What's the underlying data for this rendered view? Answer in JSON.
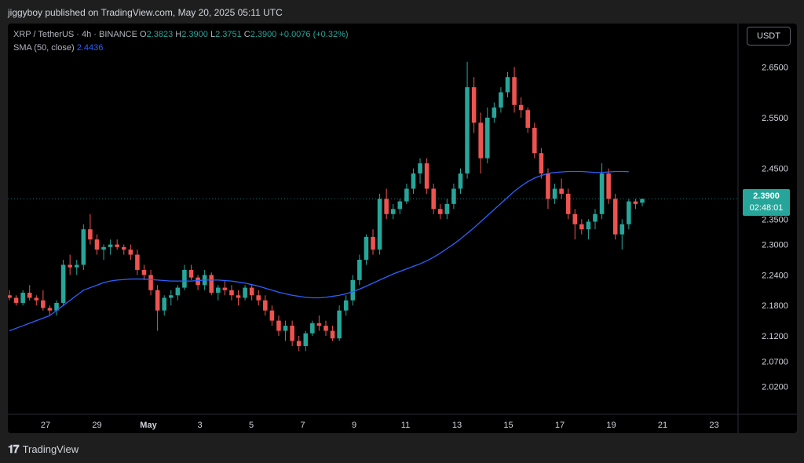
{
  "header": {
    "publisher_text": "jiggyboy published on TradingView.com, May 20, 2025 05:11 UTC"
  },
  "legend": {
    "symbol": "XRP / TetherUS · 4h · BINANCE",
    "o_label": "O",
    "o_value": "2.3823",
    "h_label": "H",
    "h_value": "2.3900",
    "l_label": "L",
    "l_value": "2.3751",
    "c_label": "C",
    "c_value": "2.3900",
    "change": "+0.0076 (+0.32%)",
    "sma_label": "SMA (50, close)",
    "sma_value": "2.4436"
  },
  "toolbar": {
    "currency_button": "USDT"
  },
  "last_price": {
    "price": "2.3900",
    "countdown": "02:48:01"
  },
  "footer": {
    "logo_mark": "𝟏𝟕",
    "brand": "TradingView"
  },
  "colors": {
    "up": "#26a69a",
    "down": "#ef5350",
    "sma": "#2962ff",
    "background": "#000000"
  },
  "chart_data": {
    "type": "candlestick",
    "symbol": "XRP / TetherUS",
    "interval": "4h",
    "yticks": [
      "2.6500",
      "2.5500",
      "2.4500",
      "2.3500",
      "2.3000",
      "2.2400",
      "2.1800",
      "2.1200",
      "2.0700",
      "2.0200"
    ],
    "ytick_values": [
      2.65,
      2.55,
      2.45,
      2.35,
      2.3,
      2.24,
      2.18,
      2.12,
      2.07,
      2.02
    ],
    "xticks": [
      "27",
      "29",
      "May",
      "3",
      "5",
      "7",
      "9",
      "11",
      "13",
      "15",
      "17",
      "19",
      "21",
      "23"
    ],
    "ylim": [
      1.97,
      2.72
    ],
    "candles": [
      [
        2.2,
        2.21,
        2.19,
        2.195
      ],
      [
        2.195,
        2.2,
        2.18,
        2.185
      ],
      [
        2.185,
        2.21,
        2.18,
        2.205
      ],
      [
        2.205,
        2.22,
        2.19,
        2.195
      ],
      [
        2.195,
        2.2,
        2.18,
        2.19
      ],
      [
        2.19,
        2.21,
        2.17,
        2.175
      ],
      [
        2.175,
        2.18,
        2.16,
        2.17
      ],
      [
        2.17,
        2.19,
        2.16,
        2.185
      ],
      [
        2.185,
        2.27,
        2.18,
        2.26
      ],
      [
        2.26,
        2.28,
        2.24,
        2.255
      ],
      [
        2.255,
        2.27,
        2.24,
        2.26
      ],
      [
        2.26,
        2.34,
        2.25,
        2.33
      ],
      [
        2.33,
        2.36,
        2.3,
        2.31
      ],
      [
        2.31,
        2.32,
        2.28,
        2.29
      ],
      [
        2.29,
        2.3,
        2.27,
        2.295
      ],
      [
        2.295,
        2.31,
        2.28,
        2.3
      ],
      [
        2.3,
        2.31,
        2.29,
        2.295
      ],
      [
        2.295,
        2.3,
        2.28,
        2.29
      ],
      [
        2.29,
        2.3,
        2.27,
        2.28
      ],
      [
        2.28,
        2.29,
        2.24,
        2.25
      ],
      [
        2.25,
        2.26,
        2.23,
        2.24
      ],
      [
        2.24,
        2.25,
        2.2,
        2.21
      ],
      [
        2.21,
        2.22,
        2.13,
        2.17
      ],
      [
        2.17,
        2.2,
        2.16,
        2.195
      ],
      [
        2.195,
        2.21,
        2.18,
        2.2
      ],
      [
        2.2,
        2.22,
        2.19,
        2.215
      ],
      [
        2.215,
        2.26,
        2.21,
        2.25
      ],
      [
        2.25,
        2.26,
        2.23,
        2.235
      ],
      [
        2.235,
        2.24,
        2.21,
        2.22
      ],
      [
        2.22,
        2.25,
        2.21,
        2.24
      ],
      [
        2.24,
        2.245,
        2.2,
        2.205
      ],
      [
        2.205,
        2.22,
        2.19,
        2.215
      ],
      [
        2.215,
        2.23,
        2.2,
        2.21
      ],
      [
        2.21,
        2.22,
        2.19,
        2.2
      ],
      [
        2.2,
        2.21,
        2.18,
        2.195
      ],
      [
        2.195,
        2.22,
        2.19,
        2.215
      ],
      [
        2.215,
        2.22,
        2.19,
        2.2
      ],
      [
        2.2,
        2.21,
        2.18,
        2.19
      ],
      [
        2.19,
        2.2,
        2.16,
        2.17
      ],
      [
        2.17,
        2.18,
        2.14,
        2.15
      ],
      [
        2.15,
        2.16,
        2.12,
        2.13
      ],
      [
        2.13,
        2.15,
        2.11,
        2.14
      ],
      [
        2.14,
        2.15,
        2.1,
        2.11
      ],
      [
        2.11,
        2.12,
        2.09,
        2.1
      ],
      [
        2.1,
        2.13,
        2.09,
        2.125
      ],
      [
        2.125,
        2.15,
        2.12,
        2.145
      ],
      [
        2.145,
        2.16,
        2.13,
        2.14
      ],
      [
        2.14,
        2.15,
        2.12,
        2.13
      ],
      [
        2.13,
        2.14,
        2.11,
        2.115
      ],
      [
        2.115,
        2.18,
        2.11,
        2.17
      ],
      [
        2.17,
        2.2,
        2.16,
        2.19
      ],
      [
        2.19,
        2.24,
        2.18,
        2.23
      ],
      [
        2.23,
        2.28,
        2.22,
        2.27
      ],
      [
        2.27,
        2.32,
        2.26,
        2.315
      ],
      [
        2.315,
        2.33,
        2.28,
        2.29
      ],
      [
        2.29,
        2.4,
        2.28,
        2.39
      ],
      [
        2.39,
        2.41,
        2.35,
        2.36
      ],
      [
        2.36,
        2.38,
        2.35,
        2.37
      ],
      [
        2.37,
        2.39,
        2.36,
        2.385
      ],
      [
        2.385,
        2.42,
        2.38,
        2.41
      ],
      [
        2.41,
        2.45,
        2.4,
        2.44
      ],
      [
        2.44,
        2.47,
        2.42,
        2.46
      ],
      [
        2.46,
        2.47,
        2.4,
        2.41
      ],
      [
        2.41,
        2.42,
        2.36,
        2.37
      ],
      [
        2.37,
        2.38,
        2.35,
        2.36
      ],
      [
        2.36,
        2.39,
        2.35,
        2.38
      ],
      [
        2.38,
        2.42,
        2.37,
        2.41
      ],
      [
        2.41,
        2.45,
        2.4,
        2.44
      ],
      [
        2.44,
        2.66,
        2.43,
        2.61
      ],
      [
        2.61,
        2.63,
        2.52,
        2.54
      ],
      [
        2.54,
        2.56,
        2.44,
        2.47
      ],
      [
        2.47,
        2.57,
        2.46,
        2.55
      ],
      [
        2.55,
        2.58,
        2.54,
        2.57
      ],
      [
        2.57,
        2.61,
        2.56,
        2.6
      ],
      [
        2.6,
        2.64,
        2.59,
        2.63
      ],
      [
        2.63,
        2.65,
        2.56,
        2.575
      ],
      [
        2.575,
        2.59,
        2.55,
        2.565
      ],
      [
        2.565,
        2.57,
        2.52,
        2.53
      ],
      [
        2.53,
        2.54,
        2.47,
        2.48
      ],
      [
        2.48,
        2.49,
        2.43,
        2.44
      ],
      [
        2.44,
        2.45,
        2.37,
        2.39
      ],
      [
        2.39,
        2.42,
        2.38,
        2.41
      ],
      [
        2.41,
        2.43,
        2.39,
        2.4
      ],
      [
        2.4,
        2.41,
        2.35,
        2.36
      ],
      [
        2.36,
        2.37,
        2.31,
        2.34
      ],
      [
        2.34,
        2.35,
        2.32,
        2.33
      ],
      [
        2.33,
        2.35,
        2.31,
        2.345
      ],
      [
        2.345,
        2.37,
        2.33,
        2.36
      ],
      [
        2.36,
        2.46,
        2.35,
        2.44
      ],
      [
        2.44,
        2.45,
        2.38,
        2.39
      ],
      [
        2.39,
        2.4,
        2.31,
        2.32
      ],
      [
        2.32,
        2.35,
        2.29,
        2.34
      ],
      [
        2.34,
        2.39,
        2.33,
        2.385
      ],
      [
        2.385,
        2.39,
        2.37,
        2.38
      ],
      [
        2.3823,
        2.39,
        2.3751,
        2.39
      ]
    ],
    "sma": [
      2.13,
      2.135,
      2.14,
      2.145,
      2.15,
      2.155,
      2.16,
      2.17,
      2.18,
      2.19,
      2.2,
      2.21,
      2.215,
      2.22,
      2.225,
      2.228,
      2.23,
      2.231,
      2.232,
      2.232,
      2.232,
      2.231,
      2.23,
      2.229,
      2.228,
      2.228,
      2.228,
      2.228,
      2.229,
      2.23,
      2.23,
      2.23,
      2.229,
      2.228,
      2.226,
      2.224,
      2.221,
      2.218,
      2.214,
      2.21,
      2.206,
      2.203,
      2.2,
      2.198,
      2.196,
      2.195,
      2.195,
      2.196,
      2.198,
      2.2,
      2.203,
      2.207,
      2.212,
      2.218,
      2.224,
      2.23,
      2.236,
      2.242,
      2.247,
      2.252,
      2.257,
      2.262,
      2.268,
      2.275,
      2.283,
      2.292,
      2.301,
      2.311,
      2.322,
      2.333,
      2.345,
      2.357,
      2.369,
      2.381,
      2.393,
      2.405,
      2.415,
      2.424,
      2.431,
      2.436,
      2.44,
      2.442,
      2.443,
      2.444,
      2.444,
      2.444,
      2.443,
      2.442,
      2.442,
      2.443,
      2.444,
      2.444,
      2.4436
    ],
    "last_close": 2.39
  }
}
